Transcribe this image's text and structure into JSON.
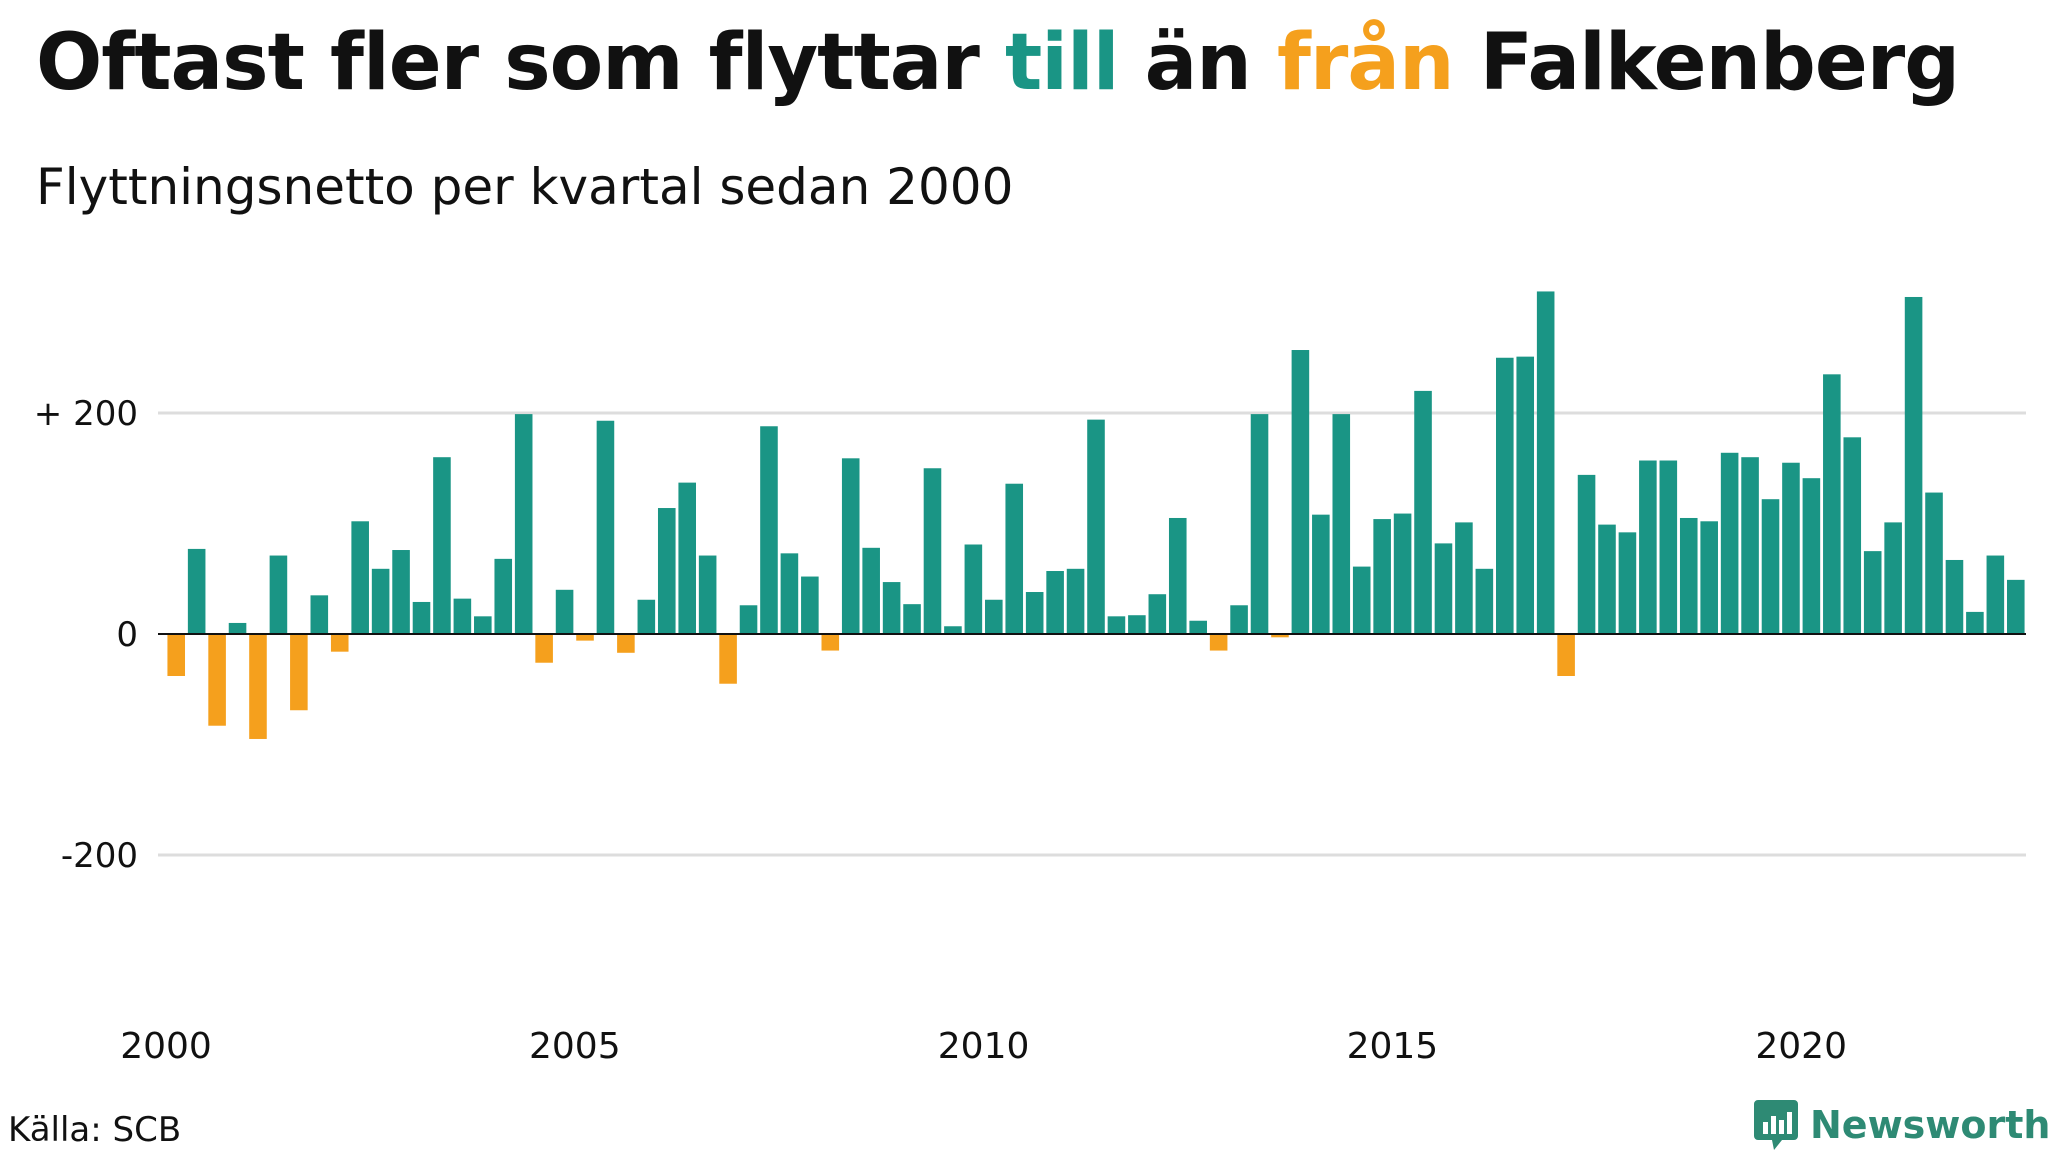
{
  "title": {
    "part1": "Oftast fler som flyttar ",
    "till": "till",
    "part2": " än ",
    "fran": "från",
    "part3": " Falkenberg"
  },
  "subtitle": "Flyttningsnetto per kvartal sedan 2000",
  "source": "Källa: SCB",
  "brand": {
    "name": "Newsworthy"
  },
  "colors": {
    "positive": "#1a9585",
    "negative": "#f5a01d",
    "grid": "#dddddd",
    "text": "#111111",
    "brand": "#2e8a74"
  },
  "chart_data": {
    "type": "bar",
    "title": "Flyttningsnetto per kvartal sedan 2000",
    "xlabel": "",
    "ylabel": "",
    "ylim": [
      -300,
      310
    ],
    "grid": true,
    "yticks": [
      {
        "value": 200,
        "label": "+ 200"
      },
      {
        "value": 0,
        "label": "0"
      },
      {
        "value": -200,
        "label": "-200"
      }
    ],
    "xticks": [
      "2000",
      "2005",
      "2010",
      "2015",
      "2020"
    ],
    "start_year": 2000,
    "values": [
      -38,
      77,
      -83,
      10,
      -95,
      71,
      -69,
      35,
      -16,
      102,
      59,
      76,
      29,
      160,
      32,
      16,
      68,
      199,
      -26,
      40,
      -6,
      193,
      -17,
      31,
      114,
      137,
      71,
      -45,
      26,
      188,
      73,
      52,
      -15,
      159,
      78,
      47,
      27,
      150,
      7,
      81,
      31,
      136,
      38,
      57,
      59,
      194,
      16,
      17,
      36,
      105,
      12,
      -15,
      26,
      199,
      -3,
      257,
      108,
      199,
      61,
      104,
      109,
      220,
      82,
      101,
      59,
      250,
      251,
      310,
      -38,
      144,
      99,
      92,
      157,
      157,
      105,
      102,
      164,
      160,
      122,
      155,
      141,
      235,
      178,
      75,
      101,
      305,
      128,
      67,
      20,
      71,
      49
    ]
  }
}
